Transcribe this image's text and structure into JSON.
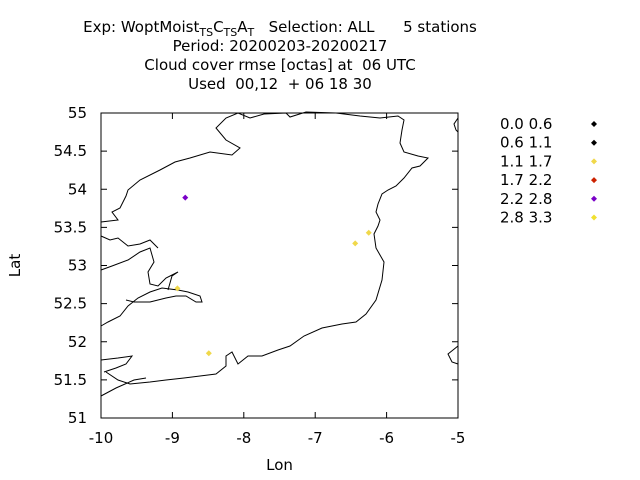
{
  "title": {
    "exp_prefix": "Exp: WoptMoist",
    "exp_parts": [
      {
        "text": "T",
        "sub": true
      },
      {
        "text": "S",
        "sub": true
      },
      {
        "text": "C",
        "sub": false
      },
      {
        "text": "T",
        "sub": true
      },
      {
        "text": "S",
        "sub": true
      },
      {
        "text": "A",
        "sub": false
      },
      {
        "text": "T",
        "sub": true
      }
    ],
    "selection": "Selection: ALL",
    "stations": "5 stations",
    "line2": "Period: 20200203-20200217",
    "line3": "Cloud cover rmse [octas] at  06 UTC",
    "line4": "Used  00,12  + 06 18 30"
  },
  "chart_data": {
    "type": "scatter",
    "xlabel": "Lon",
    "ylabel": "Lat",
    "xlim": [
      -10,
      -5
    ],
    "ylim": [
      51,
      55
    ],
    "xticks": [
      "-10",
      "-9",
      "-8",
      "-7",
      "-6",
      "-5"
    ],
    "yticks": [
      "51",
      "51.5",
      "52",
      "52.5",
      "53",
      "53.5",
      "54",
      "54.5",
      "55"
    ],
    "legend_position": "right",
    "legend": [
      {
        "label": "0.0 0.6",
        "color": "#000000"
      },
      {
        "label": "0.6 1.1",
        "color": "#000000"
      },
      {
        "label": "1.1 1.7",
        "color": "#f0d84a"
      },
      {
        "label": "1.7 2.2",
        "color": "#cc2200"
      },
      {
        "label": "2.2 2.8",
        "color": "#7a00c8"
      },
      {
        "label": "2.8 3.3",
        "color": "#f0e030"
      }
    ],
    "points": [
      {
        "lon": -8.82,
        "lat": 53.89,
        "color": "#7a00c8"
      },
      {
        "lon": -6.44,
        "lat": 53.29,
        "color": "#f0d84a"
      },
      {
        "lon": -6.25,
        "lat": 53.43,
        "color": "#f0d84a"
      },
      {
        "lon": -8.93,
        "lat": 52.7,
        "color": "#f0d84a"
      },
      {
        "lon": -8.49,
        "lat": 51.85,
        "color": "#f0d84a"
      }
    ]
  }
}
